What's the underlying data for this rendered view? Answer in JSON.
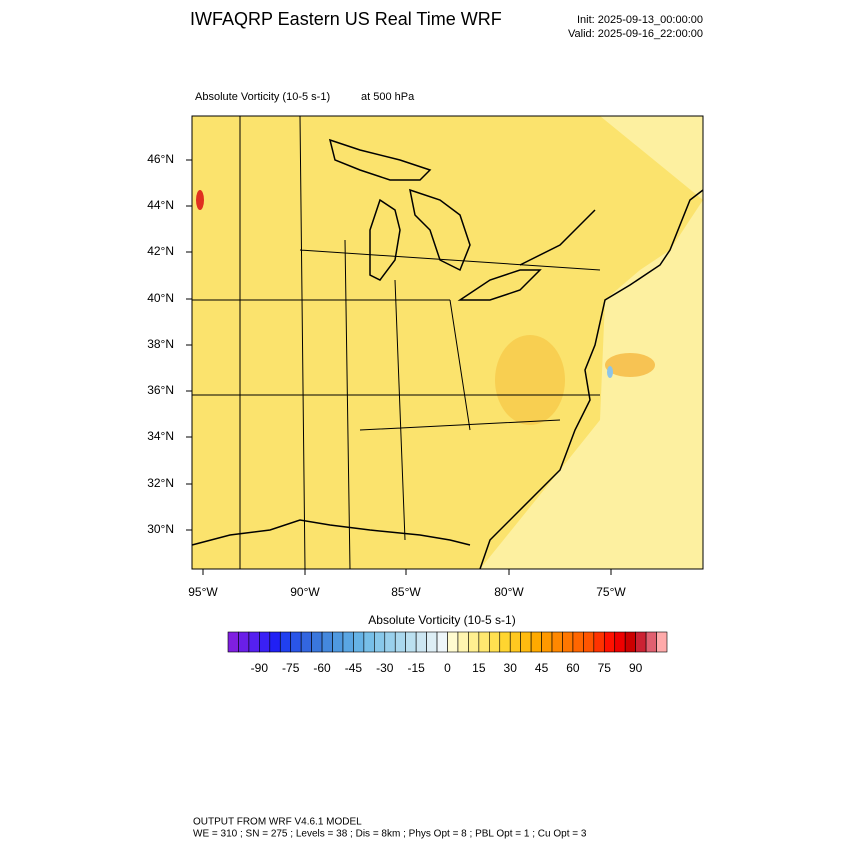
{
  "header": {
    "title": "IWFAQRP Eastern US Real Time WRF",
    "init": "Init: 2025-09-13_00:00:00",
    "valid": "Valid: 2025-09-16_22:00:00"
  },
  "map": {
    "field_label": "Absolute Vorticity   (10-5 s-1)",
    "level_label": "at   500 hPa",
    "lat_labels": [
      "46°N",
      "44°N",
      "42°N",
      "40°N",
      "38°N",
      "36°N",
      "34°N",
      "32°N",
      "30°N"
    ],
    "lon_labels": [
      "95°W",
      "90°W",
      "85°W",
      "80°W",
      "75°W"
    ]
  },
  "colorbar": {
    "title": "Absolute Vorticity  (10-5 s-1)",
    "range": [
      -105,
      105
    ],
    "ticks": [
      -90,
      -75,
      -60,
      -45,
      -30,
      -15,
      0,
      15,
      30,
      45,
      60,
      75,
      90
    ],
    "colors": [
      "#7f1fe0",
      "#6a1fe8",
      "#5520f0",
      "#3a20f5",
      "#2020f5",
      "#2040f0",
      "#2a55e8",
      "#3366e0",
      "#3a77dd",
      "#4488dd",
      "#4f99e0",
      "#5aa6e3",
      "#66b3e6",
      "#77bfe8",
      "#88c8ea",
      "#99d0ec",
      "#aad8ee",
      "#bbe0f0",
      "#cce6f2",
      "#ddeef5",
      "#eef6fa",
      "#fffbd0",
      "#fff5b0",
      "#ffef90",
      "#ffe870",
      "#ffe050",
      "#ffd530",
      "#ffc820",
      "#ffbb10",
      "#ffaa00",
      "#ff9900",
      "#ff8800",
      "#ff7700",
      "#ff6600",
      "#ff5500",
      "#ff3300",
      "#ff1100",
      "#ee0000",
      "#cc0000",
      "#cc2233",
      "#e06070",
      "#ffaaaa"
    ]
  },
  "footer": {
    "line1": "OUTPUT FROM WRF V4.6.1 MODEL",
    "line2": "WE = 310 ; SN = 275 ; Levels = 38 ; Dis = 8km ; Phys Opt = 8 ; PBL Opt = 1 ; Cu Opt = 3"
  }
}
